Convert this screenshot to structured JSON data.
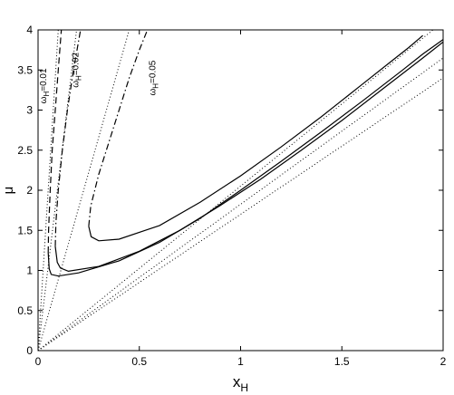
{
  "chart_data": {
    "type": "line",
    "title": "",
    "xlabel": "x",
    "xlabel_sub": "H",
    "ylabel": "μ",
    "xlim": [
      0,
      2
    ],
    "ylim": [
      0,
      4
    ],
    "xticks": [
      0,
      0.5,
      1,
      1.5,
      2
    ],
    "xtick_labels": [
      "0",
      "0.5",
      "1",
      "1.5",
      "2"
    ],
    "yticks": [
      0,
      0.5,
      1,
      1.5,
      2,
      2.5,
      3,
      3.5,
      4
    ],
    "ytick_labels": [
      "0",
      "0.5",
      "1",
      "1.5",
      "2",
      "2.5",
      "3",
      "3.5",
      "4"
    ],
    "grid": false,
    "annotations": [
      {
        "base": "ω",
        "sub": "H",
        "value": "=0.01",
        "x": 0.04,
        "y": 3.3
      },
      {
        "base": "ω",
        "sub": "H",
        "value": "=0.02",
        "x": 0.2,
        "y": 3.5
      },
      {
        "base": "ω",
        "sub": "H",
        "value": "=0.05",
        "x": 0.58,
        "y": 3.4
      }
    ],
    "series": [
      {
        "style": "solid",
        "points": [
          [
            0.05,
            1.22
          ],
          [
            0.055,
            1.02
          ],
          [
            0.065,
            0.95
          ],
          [
            0.1,
            0.93
          ],
          [
            0.2,
            0.97
          ],
          [
            0.4,
            1.12
          ],
          [
            0.6,
            1.35
          ],
          [
            0.8,
            1.65
          ],
          [
            1.0,
            2.0
          ],
          [
            1.2,
            2.36
          ],
          [
            1.4,
            2.73
          ],
          [
            1.6,
            3.11
          ],
          [
            1.8,
            3.5
          ],
          [
            1.9,
            3.7
          ],
          [
            2.0,
            3.88
          ]
        ]
      },
      {
        "style": "dashed",
        "points": [
          [
            0.05,
            1.22
          ],
          [
            0.052,
            1.5
          ],
          [
            0.06,
            2.0
          ],
          [
            0.07,
            2.5
          ],
          [
            0.085,
            3.0
          ],
          [
            0.1,
            3.5
          ],
          [
            0.115,
            4.0
          ]
        ]
      },
      {
        "style": "solid",
        "points": [
          [
            0.085,
            1.3
          ],
          [
            0.095,
            1.1
          ],
          [
            0.11,
            1.03
          ],
          [
            0.15,
            0.99
          ],
          [
            0.3,
            1.05
          ],
          [
            0.5,
            1.24
          ],
          [
            0.7,
            1.5
          ],
          [
            0.9,
            1.81
          ],
          [
            1.1,
            2.14
          ],
          [
            1.3,
            2.5
          ],
          [
            1.5,
            2.87
          ],
          [
            1.7,
            3.26
          ],
          [
            1.9,
            3.65
          ],
          [
            2.0,
            3.85
          ]
        ]
      },
      {
        "style": "dashdot",
        "points": [
          [
            0.085,
            1.3
          ],
          [
            0.088,
            1.6
          ],
          [
            0.1,
            2.0
          ],
          [
            0.12,
            2.5
          ],
          [
            0.145,
            3.0
          ],
          [
            0.175,
            3.5
          ],
          [
            0.21,
            4.0
          ]
        ]
      },
      {
        "style": "solid",
        "points": [
          [
            0.25,
            1.55
          ],
          [
            0.262,
            1.42
          ],
          [
            0.3,
            1.37
          ],
          [
            0.4,
            1.39
          ],
          [
            0.6,
            1.56
          ],
          [
            0.8,
            1.85
          ],
          [
            1.0,
            2.18
          ],
          [
            1.2,
            2.54
          ],
          [
            1.4,
            2.92
          ],
          [
            1.6,
            3.32
          ],
          [
            1.75,
            3.62
          ],
          [
            1.83,
            3.78
          ],
          [
            1.9,
            3.93
          ]
        ]
      },
      {
        "style": "dashdot",
        "points": [
          [
            0.25,
            1.55
          ],
          [
            0.26,
            1.8
          ],
          [
            0.3,
            2.2
          ],
          [
            0.35,
            2.6
          ],
          [
            0.4,
            3.0
          ],
          [
            0.45,
            3.4
          ],
          [
            0.5,
            3.75
          ],
          [
            0.54,
            4.0
          ]
        ]
      },
      {
        "style": "dotted",
        "points": [
          [
            0.0,
            0.0
          ],
          [
            0.1,
            4.0
          ]
        ]
      },
      {
        "style": "dotted",
        "points": [
          [
            0.0,
            0.0
          ],
          [
            0.19,
            4.0
          ]
        ]
      },
      {
        "style": "dotted",
        "points": [
          [
            0.0,
            0.0
          ],
          [
            0.45,
            4.0
          ]
        ]
      },
      {
        "style": "dotted",
        "points": [
          [
            0.0,
            0.0
          ],
          [
            1.95,
            4.0
          ]
        ]
      },
      {
        "style": "dotted",
        "points": [
          [
            0.0,
            0.0
          ],
          [
            2.0,
            3.65
          ]
        ]
      },
      {
        "style": "dotted",
        "points": [
          [
            0.0,
            0.0
          ],
          [
            2.0,
            3.4
          ]
        ]
      }
    ]
  }
}
